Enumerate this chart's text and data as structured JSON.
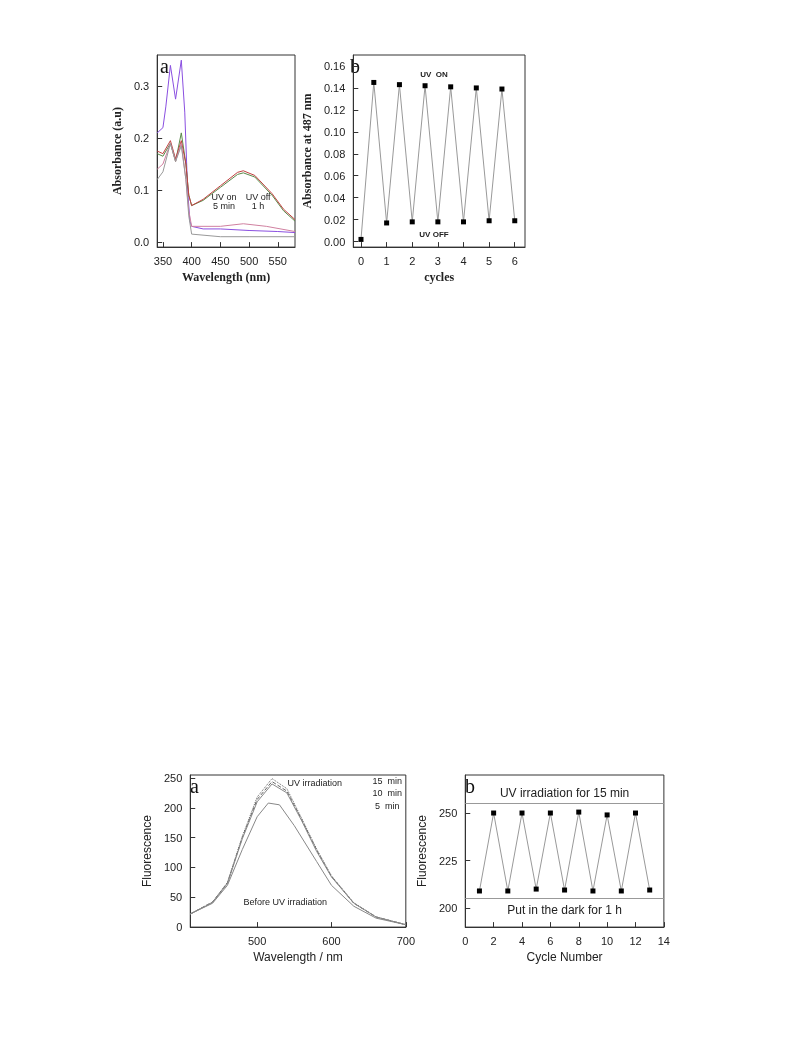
{
  "chart_data": [
    {
      "type": "line",
      "xlabel": "Wavelength (nm)",
      "ylabel": "Absorbance (a.u)",
      "xlim": [
        340,
        580
      ],
      "ylim": [
        -0.01,
        0.36
      ],
      "xticks": [
        350,
        400,
        450,
        500,
        550
      ],
      "yticks": [
        {
          "value": 0,
          "label": "0.0"
        },
        {
          "value": 0.1,
          "label": "0.1"
        },
        {
          "value": 0.2,
          "label": "0.2"
        },
        {
          "value": 0.3,
          "label": "0.3"
        }
      ],
      "marker": "none",
      "grid": false,
      "annotations": [
        "a",
        "UV on\n5 min",
        "UV off\n1 h"
      ],
      "series": [
        {
          "color": "#8a4fe0",
          "x": [
            340,
            350,
            355,
            363,
            372,
            382,
            388,
            393,
            397,
            400,
            420,
            450,
            500,
            550,
            580
          ],
          "values": [
            0.21,
            0.22,
            0.26,
            0.34,
            0.275,
            0.35,
            0.25,
            0.1,
            0.04,
            0.03,
            0.025,
            0.025,
            0.022,
            0.02,
            0.018
          ]
        },
        {
          "color": "#5a8a4a",
          "x": [
            340,
            350,
            363,
            372,
            382,
            390,
            395,
            400,
            420,
            450,
            480,
            490,
            510,
            540,
            560,
            580
          ],
          "values": [
            0.17,
            0.165,
            0.19,
            0.155,
            0.21,
            0.15,
            0.09,
            0.07,
            0.08,
            0.105,
            0.13,
            0.133,
            0.125,
            0.09,
            0.06,
            0.04
          ]
        },
        {
          "color": "#c04040",
          "x": [
            340,
            350,
            363,
            372,
            382,
            390,
            395,
            400,
            420,
            450,
            480,
            490,
            510,
            540,
            560,
            580
          ],
          "values": [
            0.175,
            0.17,
            0.195,
            0.16,
            0.195,
            0.15,
            0.09,
            0.07,
            0.082,
            0.108,
            0.134,
            0.137,
            0.128,
            0.093,
            0.063,
            0.043
          ]
        },
        {
          "color": "#d080a0",
          "x": [
            340,
            350,
            363,
            372,
            382,
            390,
            395,
            400,
            450,
            490,
            530,
            580
          ],
          "values": [
            0.14,
            0.15,
            0.19,
            0.155,
            0.19,
            0.12,
            0.06,
            0.03,
            0.03,
            0.035,
            0.03,
            0.02
          ]
        },
        {
          "color": "#999999",
          "x": [
            340,
            350,
            363,
            372,
            382,
            390,
            395,
            400,
            450,
            500,
            580
          ],
          "values": [
            0.12,
            0.135,
            0.19,
            0.155,
            0.185,
            0.12,
            0.05,
            0.015,
            0.01,
            0.01,
            0.01
          ]
        }
      ]
    },
    {
      "type": "line",
      "xlabel": "cycles",
      "ylabel": "Absorbance at 487 nm",
      "xlim": [
        -0.3,
        6.4
      ],
      "ylim": [
        -0.005,
        0.17
      ],
      "xticks": [
        0,
        1,
        2,
        3,
        4,
        5,
        6
      ],
      "yticks": [
        {
          "value": 0,
          "label": "0.00"
        },
        {
          "value": 0.02,
          "label": "0.02"
        },
        {
          "value": 0.04,
          "label": "0.04"
        },
        {
          "value": 0.06,
          "label": "0.06"
        },
        {
          "value": 0.08,
          "label": "0.08"
        },
        {
          "value": 0.1,
          "label": "0.10"
        },
        {
          "value": 0.12,
          "label": "0.12"
        },
        {
          "value": 0.14,
          "label": "0.14"
        },
        {
          "value": 0.16,
          "label": "0.16"
        }
      ],
      "marker": "square",
      "grid": false,
      "annotations": [
        "b",
        "UV  ON",
        "UV OFF"
      ],
      "series": [
        {
          "color": "#999999",
          "x": [
            0,
            0.5,
            1,
            1.5,
            2,
            2.5,
            3,
            3.5,
            4,
            4.5,
            5,
            5.5,
            6
          ],
          "values": [
            0.002,
            0.145,
            0.017,
            0.143,
            0.018,
            0.142,
            0.018,
            0.141,
            0.018,
            0.14,
            0.019,
            0.139,
            0.019
          ]
        }
      ]
    },
    {
      "type": "line",
      "xlabel": "Wavelength / nm",
      "ylabel": "Fluorescence",
      "xlim": [
        410,
        700
      ],
      "ylim": [
        0,
        255
      ],
      "xticks": [
        500,
        600,
        700
      ],
      "yticks": [
        0,
        50,
        100,
        150,
        200,
        250
      ],
      "marker": "none",
      "grid": false,
      "annotations": [
        "a",
        "UV irradiation",
        "15  min",
        "10  min",
        "5  min",
        "Before UV irradiation"
      ],
      "series": [
        {
          "color": "#666666",
          "line_style": "dotted",
          "x": [
            410,
            440,
            460,
            480,
            500,
            520,
            540,
            560,
            580,
            600,
            630,
            660,
            700
          ],
          "values": [
            22,
            42,
            75,
            152,
            218,
            249,
            232,
            182,
            131,
            86,
            41,
            17,
            4
          ]
        },
        {
          "color": "#666666",
          "line_style": "dashed",
          "x": [
            410,
            440,
            460,
            480,
            500,
            520,
            540,
            560,
            580,
            600,
            630,
            660,
            700
          ],
          "values": [
            22,
            42,
            74,
            150,
            214,
            244,
            228,
            180,
            129,
            85,
            40,
            17,
            4
          ]
        },
        {
          "color": "#888888",
          "line_style": "solid",
          "x": [
            410,
            440,
            460,
            480,
            500,
            520,
            540,
            560,
            580,
            600,
            630,
            660,
            700
          ],
          "values": [
            22,
            41,
            73,
            148,
            210,
            240,
            225,
            178,
            127,
            84,
            40,
            17,
            4
          ]
        },
        {
          "color": "#888888",
          "line_style": "solid",
          "x": [
            410,
            440,
            460,
            480,
            500,
            515,
            530,
            550,
            580,
            600,
            630,
            660,
            700
          ],
          "values": [
            22,
            40,
            70,
            130,
            185,
            208,
            205,
            170,
            110,
            70,
            35,
            15,
            4
          ]
        }
      ]
    },
    {
      "type": "line",
      "xlabel": "Cycle Number",
      "ylabel": "Fluorescence",
      "xlim": [
        0,
        14
      ],
      "ylim": [
        190,
        270
      ],
      "xticks": [
        0,
        2,
        4,
        6,
        8,
        10,
        12,
        14
      ],
      "yticks": [
        200,
        225,
        250
      ],
      "marker": "square",
      "grid": false,
      "annotations": [
        "b"
      ],
      "ref_lines": [
        {
          "axis": "y",
          "value": 255,
          "label": "UV irradiation for 15 min",
          "color": "#999999"
        },
        {
          "axis": "y",
          "value": 205,
          "label": "Put in the dark for 1 h",
          "color": "#999999"
        }
      ],
      "series": [
        {
          "color": "#999999",
          "x": [
            1,
            2,
            3,
            4,
            5,
            6,
            7,
            8,
            9,
            10,
            11,
            12,
            13
          ],
          "values": [
            209,
            250,
            209,
            250,
            210,
            250,
            209.5,
            250.5,
            209,
            249,
            209,
            250,
            209.5
          ]
        }
      ]
    }
  ]
}
